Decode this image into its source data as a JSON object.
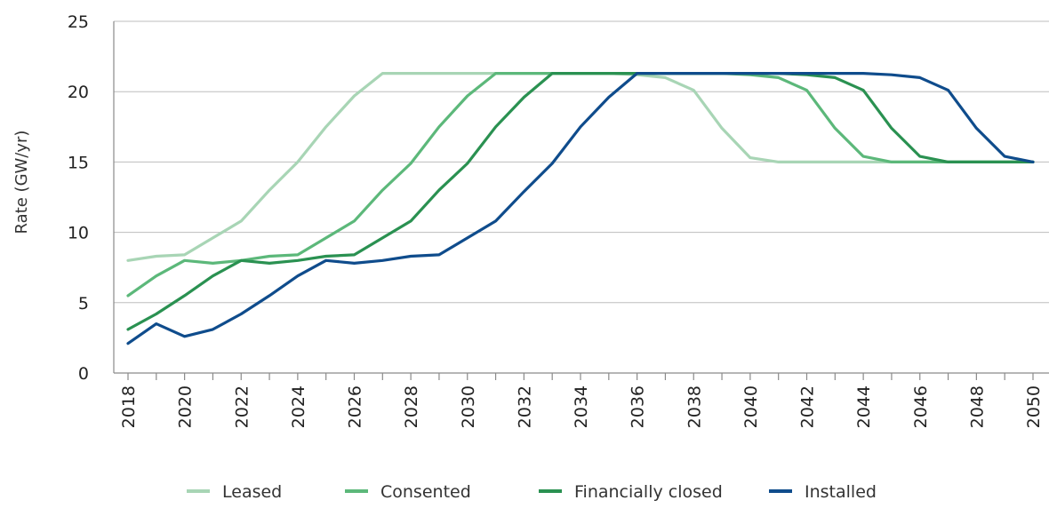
{
  "chart_data": {
    "type": "line",
    "title": "",
    "xlabel": "",
    "ylabel": "Rate (GW/yr)",
    "xlim": [
      2018,
      2050
    ],
    "ylim": [
      0,
      25
    ],
    "x_ticks": [
      "2018",
      "2020",
      "2022",
      "2024",
      "2026",
      "2028",
      "2030",
      "2032",
      "2034",
      "2036",
      "2038",
      "2040",
      "2042",
      "2044",
      "2046",
      "2048",
      "2050"
    ],
    "y_ticks": [
      "0",
      "5",
      "10",
      "15",
      "20",
      "25"
    ],
    "grid": true,
    "legend_position": "bottom",
    "x": [
      2018,
      2019,
      2020,
      2021,
      2022,
      2023,
      2024,
      2025,
      2026,
      2027,
      2028,
      2029,
      2030,
      2031,
      2032,
      2033,
      2034,
      2035,
      2036,
      2037,
      2038,
      2039,
      2040,
      2041,
      2042,
      2043,
      2044,
      2045,
      2046,
      2047,
      2048,
      2049,
      2050
    ],
    "series": [
      {
        "name": "Leased",
        "color": "#a8d5b5",
        "values": [
          8.0,
          8.3,
          8.4,
          9.6,
          10.8,
          13.0,
          15.0,
          17.5,
          19.7,
          21.3,
          21.3,
          21.3,
          21.3,
          21.3,
          21.3,
          21.3,
          21.3,
          21.3,
          21.2,
          21.0,
          20.1,
          17.4,
          15.3,
          15.0,
          15.0,
          15.0,
          15.0,
          15.0,
          15.0,
          15.0,
          15.0,
          15.0,
          15.0
        ]
      },
      {
        "name": "Consented",
        "color": "#5cb87a",
        "values": [
          5.5,
          6.9,
          8.0,
          7.8,
          8.0,
          8.3,
          8.4,
          9.6,
          10.8,
          13.0,
          14.9,
          17.5,
          19.7,
          21.3,
          21.3,
          21.3,
          21.3,
          21.3,
          21.3,
          21.3,
          21.3,
          21.3,
          21.2,
          21.0,
          20.1,
          17.4,
          15.4,
          15.0,
          15.0,
          15.0,
          15.0,
          15.0,
          15.0
        ]
      },
      {
        "name": "Financially closed",
        "color": "#2a9151",
        "values": [
          3.1,
          4.2,
          5.5,
          6.9,
          8.0,
          7.8,
          8.0,
          8.3,
          8.4,
          9.6,
          10.8,
          13.0,
          14.9,
          17.5,
          19.6,
          21.3,
          21.3,
          21.3,
          21.3,
          21.3,
          21.3,
          21.3,
          21.3,
          21.3,
          21.2,
          21.0,
          20.1,
          17.4,
          15.4,
          15.0,
          15.0,
          15.0,
          15.0
        ]
      },
      {
        "name": "Installed",
        "color": "#0f4c8c",
        "values": [
          2.1,
          3.5,
          2.6,
          3.1,
          4.2,
          5.5,
          6.9,
          8.0,
          7.8,
          8.0,
          8.3,
          8.4,
          9.6,
          10.8,
          12.9,
          14.9,
          17.5,
          19.6,
          21.3,
          21.3,
          21.3,
          21.3,
          21.3,
          21.3,
          21.3,
          21.3,
          21.3,
          21.2,
          21.0,
          20.1,
          17.4,
          15.4,
          15.0
        ]
      }
    ]
  }
}
